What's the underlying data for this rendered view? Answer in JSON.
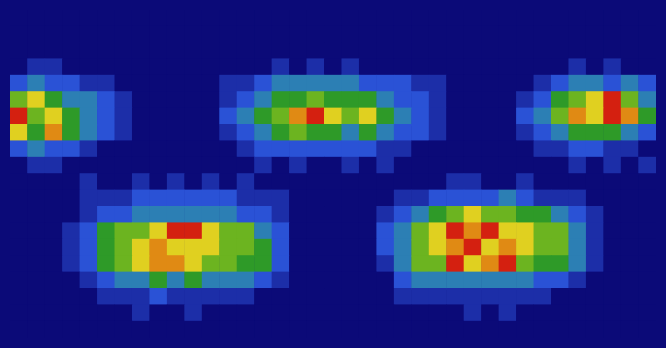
{
  "chart_data": {
    "type": "heatmap",
    "tick_labels": false,
    "grid": false,
    "cells": [
      [
        0,
        0,
        0,
        0,
        0,
        0,
        0,
        0,
        0,
        0,
        0,
        0,
        0,
        0,
        0,
        0,
        0,
        0,
        0,
        0,
        0,
        0,
        0,
        0,
        0,
        0,
        0,
        0,
        0,
        0,
        0,
        0,
        0,
        0,
        0,
        0,
        0
      ],
      [
        0,
        0,
        0,
        0,
        0,
        0,
        0,
        0,
        0,
        0,
        0,
        0,
        0,
        0,
        0,
        0,
        0,
        0,
        0,
        0,
        0,
        0,
        0,
        0,
        0,
        0,
        0,
        0,
        0,
        0,
        0,
        0,
        0,
        0,
        0,
        0,
        0
      ],
      [
        0,
        0,
        0,
        0,
        0,
        0,
        0,
        0,
        0,
        0,
        0,
        0,
        0,
        0,
        0,
        0,
        0,
        0,
        0,
        0,
        0,
        0,
        0,
        0,
        0,
        0,
        0,
        0,
        0,
        0,
        0,
        0,
        0,
        0,
        0,
        0,
        0
      ],
      [
        0,
        1,
        1,
        0,
        0,
        0,
        0,
        0,
        0,
        0,
        0,
        0,
        0,
        0,
        0,
        1,
        0,
        1,
        0,
        1,
        0,
        0,
        0,
        0,
        0,
        0,
        0,
        0,
        0,
        0,
        0,
        0,
        1,
        0,
        1,
        0,
        0
      ],
      [
        2,
        3,
        2,
        2,
        1,
        1,
        0,
        0,
        0,
        0,
        0,
        0,
        1,
        1,
        2,
        3,
        3,
        3,
        3,
        3,
        2,
        2,
        2,
        1,
        1,
        0,
        0,
        0,
        0,
        0,
        1,
        2,
        3,
        3,
        2,
        3,
        2
      ],
      [
        5,
        6,
        4,
        3,
        3,
        2,
        1,
        0,
        0,
        0,
        0,
        0,
        1,
        2,
        3,
        4,
        4,
        5,
        4,
        4,
        4,
        3,
        2,
        2,
        1,
        0,
        0,
        0,
        0,
        1,
        2,
        4,
        5,
        6,
        8,
        5,
        3
      ],
      [
        8,
        5,
        6,
        4,
        3,
        2,
        1,
        0,
        0,
        0,
        0,
        0,
        2,
        3,
        4,
        5,
        7,
        8,
        6,
        5,
        6,
        4,
        3,
        2,
        1,
        0,
        0,
        0,
        0,
        2,
        3,
        5,
        7,
        6,
        8,
        7,
        4
      ],
      [
        6,
        4,
        7,
        4,
        3,
        2,
        1,
        0,
        0,
        0,
        0,
        0,
        1,
        2,
        3,
        4,
        5,
        4,
        4,
        3,
        4,
        3,
        2,
        2,
        1,
        0,
        0,
        0,
        0,
        1,
        2,
        3,
        4,
        4,
        4,
        3,
        2
      ],
      [
        2,
        3,
        2,
        2,
        1,
        0,
        0,
        0,
        0,
        0,
        0,
        0,
        0,
        1,
        2,
        2,
        2,
        2,
        2,
        2,
        2,
        1,
        1,
        0,
        0,
        0,
        0,
        0,
        0,
        0,
        1,
        1,
        2,
        2,
        1,
        1,
        0
      ],
      [
        0,
        1,
        1,
        0,
        0,
        0,
        0,
        0,
        0,
        0,
        0,
        0,
        0,
        0,
        1,
        0,
        1,
        0,
        0,
        1,
        0,
        1,
        0,
        0,
        0,
        0,
        0,
        0,
        0,
        0,
        0,
        0,
        1,
        0,
        1,
        0,
        1
      ],
      [
        0,
        0,
        0,
        0,
        1,
        0,
        0,
        1,
        0,
        1,
        0,
        1,
        0,
        1,
        0,
        0,
        0,
        0,
        0,
        0,
        0,
        0,
        0,
        0,
        0,
        1,
        1,
        0,
        0,
        1,
        0,
        0,
        0,
        0,
        0,
        0,
        0
      ],
      [
        0,
        0,
        0,
        0,
        1,
        1,
        1,
        2,
        2,
        2,
        2,
        2,
        2,
        1,
        1,
        1,
        0,
        0,
        0,
        0,
        0,
        0,
        1,
        1,
        2,
        2,
        2,
        2,
        3,
        2,
        1,
        1,
        1,
        0,
        0,
        0,
        0
      ],
      [
        0,
        0,
        0,
        0,
        1,
        2,
        2,
        3,
        3,
        3,
        3,
        3,
        3,
        2,
        2,
        1,
        0,
        0,
        0,
        0,
        0,
        1,
        2,
        3,
        4,
        5,
        6,
        5,
        5,
        4,
        4,
        3,
        2,
        1,
        0,
        0,
        0
      ],
      [
        0,
        0,
        0,
        1,
        2,
        4,
        5,
        5,
        6,
        8,
        8,
        6,
        5,
        5,
        3,
        2,
        0,
        0,
        0,
        0,
        0,
        2,
        3,
        5,
        6,
        8,
        7,
        8,
        6,
        6,
        5,
        5,
        3,
        1,
        0,
        0,
        0
      ],
      [
        0,
        0,
        0,
        1,
        2,
        4,
        5,
        6,
        7,
        6,
        6,
        6,
        5,
        5,
        4,
        2,
        0,
        0,
        0,
        0,
        0,
        2,
        3,
        5,
        6,
        7,
        8,
        6,
        7,
        6,
        5,
        5,
        3,
        1,
        0,
        0,
        0
      ],
      [
        0,
        0,
        0,
        1,
        2,
        4,
        5,
        6,
        7,
        7,
        6,
        5,
        5,
        4,
        4,
        2,
        0,
        0,
        0,
        0,
        0,
        1,
        3,
        5,
        5,
        8,
        6,
        7,
        8,
        5,
        4,
        4,
        3,
        1,
        0,
        0,
        0
      ],
      [
        0,
        0,
        0,
        0,
        1,
        2,
        3,
        3,
        4,
        3,
        4,
        3,
        3,
        3,
        2,
        1,
        0,
        0,
        0,
        0,
        0,
        0,
        2,
        3,
        3,
        3,
        3,
        3,
        3,
        3,
        2,
        2,
        1,
        0,
        0,
        0,
        0
      ],
      [
        0,
        0,
        0,
        0,
        0,
        1,
        1,
        1,
        2,
        1,
        1,
        1,
        1,
        1,
        0,
        0,
        0,
        0,
        0,
        0,
        0,
        0,
        1,
        1,
        1,
        1,
        1,
        1,
        1,
        1,
        1,
        0,
        0,
        0,
        0,
        0,
        0
      ],
      [
        0,
        0,
        0,
        0,
        0,
        0,
        0,
        1,
        0,
        0,
        1,
        0,
        0,
        0,
        0,
        0,
        0,
        0,
        0,
        0,
        0,
        0,
        0,
        0,
        0,
        0,
        1,
        0,
        1,
        0,
        0,
        0,
        0,
        0,
        0,
        0,
        0
      ],
      [
        0,
        0,
        0,
        0,
        0,
        0,
        0,
        0,
        0,
        0,
        0,
        0,
        0,
        0,
        0,
        0,
        0,
        0,
        0,
        0,
        0,
        0,
        0,
        0,
        0,
        0,
        0,
        0,
        0,
        0,
        0,
        0,
        0,
        0,
        0,
        0,
        0
      ]
    ]
  }
}
